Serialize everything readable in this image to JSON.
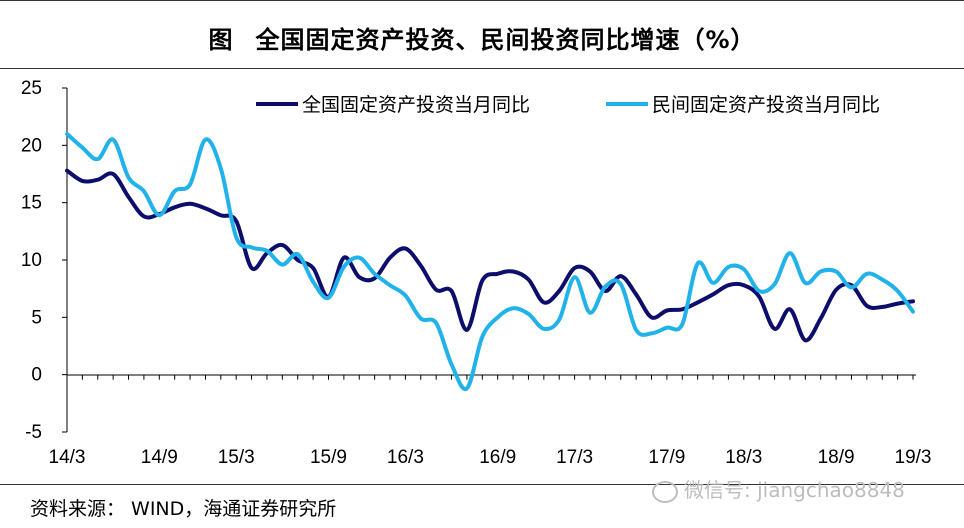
{
  "figure": {
    "prefix": "图",
    "title": "全国固定资产投资、民间投资同比增速（%）",
    "source": "资料来源：  WIND，海通证券研究所",
    "watermark": "微信号: jiangchao8848"
  },
  "colors": {
    "series1": "#0d0d6b",
    "series2": "#22b2ea",
    "axis": "#000000"
  },
  "chart_data": {
    "type": "line",
    "title": "全国固定资产投资、民间投资同比增速（%）",
    "xlabel": "",
    "ylabel": "",
    "ylim": [
      -5,
      25
    ],
    "yticks": [
      -5,
      0,
      5,
      10,
      15,
      20,
      25
    ],
    "x_tick_labels": [
      "14/3",
      "14/9",
      "15/3",
      "15/9",
      "16/3",
      "16/9",
      "17/3",
      "17/9",
      "18/3",
      "18/9",
      "19/3"
    ],
    "grid": false,
    "legend": "top",
    "x": [
      "14/3",
      "14/4",
      "14/5",
      "14/6",
      "14/7",
      "14/8",
      "14/9",
      "14/10",
      "14/11",
      "14/12",
      "15/2",
      "15/3",
      "15/4",
      "15/5",
      "15/6",
      "15/7",
      "15/8",
      "15/9",
      "15/10",
      "15/11",
      "15/12",
      "16/2",
      "16/3",
      "16/4",
      "16/5",
      "16/6",
      "16/7",
      "16/8",
      "16/9",
      "16/10",
      "16/11",
      "16/12",
      "17/2",
      "17/3",
      "17/4",
      "17/5",
      "17/6",
      "17/7",
      "17/8",
      "17/9",
      "17/10",
      "17/11",
      "17/12",
      "18/2",
      "18/3",
      "18/4",
      "18/5",
      "18/6",
      "18/7",
      "18/8",
      "18/9",
      "18/10",
      "18/11",
      "18/12",
      "19/2",
      "19/3"
    ],
    "series": [
      {
        "name": "全国固定资产投资当月同比",
        "values": [
          17.8,
          16.9,
          17.0,
          17.5,
          15.5,
          13.8,
          14.0,
          14.6,
          14.9,
          14.5,
          13.9,
          13.4,
          9.3,
          10.6,
          11.3,
          10.0,
          9.3,
          6.8,
          10.2,
          8.5,
          8.4,
          10.2,
          11.0,
          9.5,
          7.4,
          7.3,
          3.9,
          8.2,
          8.8,
          9.0,
          8.3,
          6.3,
          7.3,
          9.3,
          9.0,
          7.3,
          8.6,
          7.0,
          5.0,
          5.6,
          5.7,
          6.3,
          7.0,
          7.8,
          7.8,
          6.8,
          4.0,
          5.7,
          3.0,
          4.9,
          7.4,
          7.8,
          6.0,
          5.9,
          6.2,
          6.4
        ]
      },
      {
        "name": "民间固定资产投资当月同比",
        "values": [
          21.0,
          19.8,
          18.8,
          20.5,
          17.2,
          16.0,
          13.9,
          16.0,
          16.6,
          20.5,
          18.0,
          12.0,
          11.1,
          10.8,
          9.6,
          10.5,
          8.1,
          6.7,
          9.4,
          10.2,
          8.8,
          7.8,
          6.9,
          4.9,
          4.5,
          0.9,
          -1.2,
          3.3,
          5.0,
          5.8,
          5.3,
          4.0,
          4.8,
          8.5,
          5.4,
          7.7,
          7.9,
          3.9,
          3.6,
          4.1,
          4.4,
          9.7,
          8.0,
          9.4,
          9.2,
          7.3,
          7.9,
          10.6,
          8.0,
          9.0,
          9.0,
          7.6,
          8.8,
          8.3,
          7.3,
          5.5
        ]
      }
    ]
  }
}
